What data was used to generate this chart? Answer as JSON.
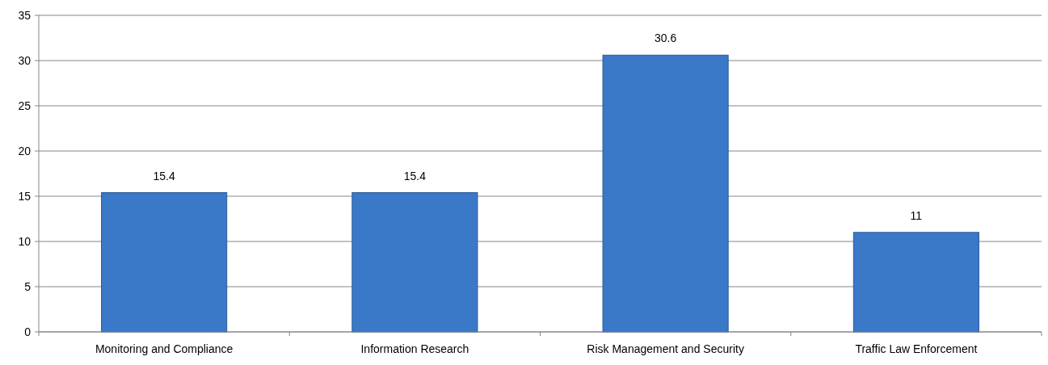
{
  "chart_data": {
    "type": "bar",
    "categories": [
      "Monitoring and Compliance",
      "Information Research",
      "Risk Management and Security",
      "Traffic Law Enforcement"
    ],
    "values": [
      15.4,
      15.4,
      30.6,
      11
    ],
    "color": "#3a78c8",
    "ylim": [
      0,
      35
    ],
    "yticks": [
      0,
      5,
      10,
      15,
      20,
      25,
      30,
      35
    ],
    "grid": "y",
    "data_labels": true
  }
}
